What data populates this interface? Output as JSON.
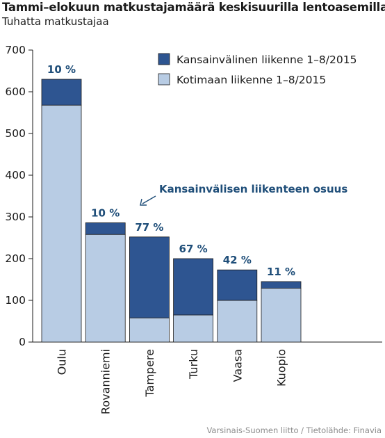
{
  "chart_data": {
    "type": "bar",
    "stacked": true,
    "title": "Tammi–elokuun matkustajamäärä keskisuurilla lentoasemilla",
    "subtitle": "Tuhatta matkustajaa",
    "categories": [
      "Oulu",
      "Rovanniemi",
      "Tampere",
      "Turku",
      "Vaasa",
      "Kuopio"
    ],
    "series": [
      {
        "name": "Kotimaan liikenne 1–8/2015",
        "values": [
          568,
          258,
          58,
          65,
          100,
          129
        ],
        "color": "#b8cce4"
      },
      {
        "name": "Kansainvälinen liikenne 1–8/2015",
        "values": [
          62,
          28,
          194,
          135,
          73,
          16
        ],
        "color": "#2e5591"
      }
    ],
    "data_labels": [
      "10 %",
      "10 %",
      "77 %",
      "67 %",
      "42 %",
      "11 %"
    ],
    "yticks": [
      0,
      100,
      200,
      300,
      400,
      500,
      600,
      700
    ],
    "ylim": [
      0,
      700
    ],
    "grid": false,
    "legend": "top-right",
    "annotation": "Kansainvälisen liikenteen osuus",
    "source": "Varsinais-Suomen liitto / Tietolähde: Finavia"
  }
}
